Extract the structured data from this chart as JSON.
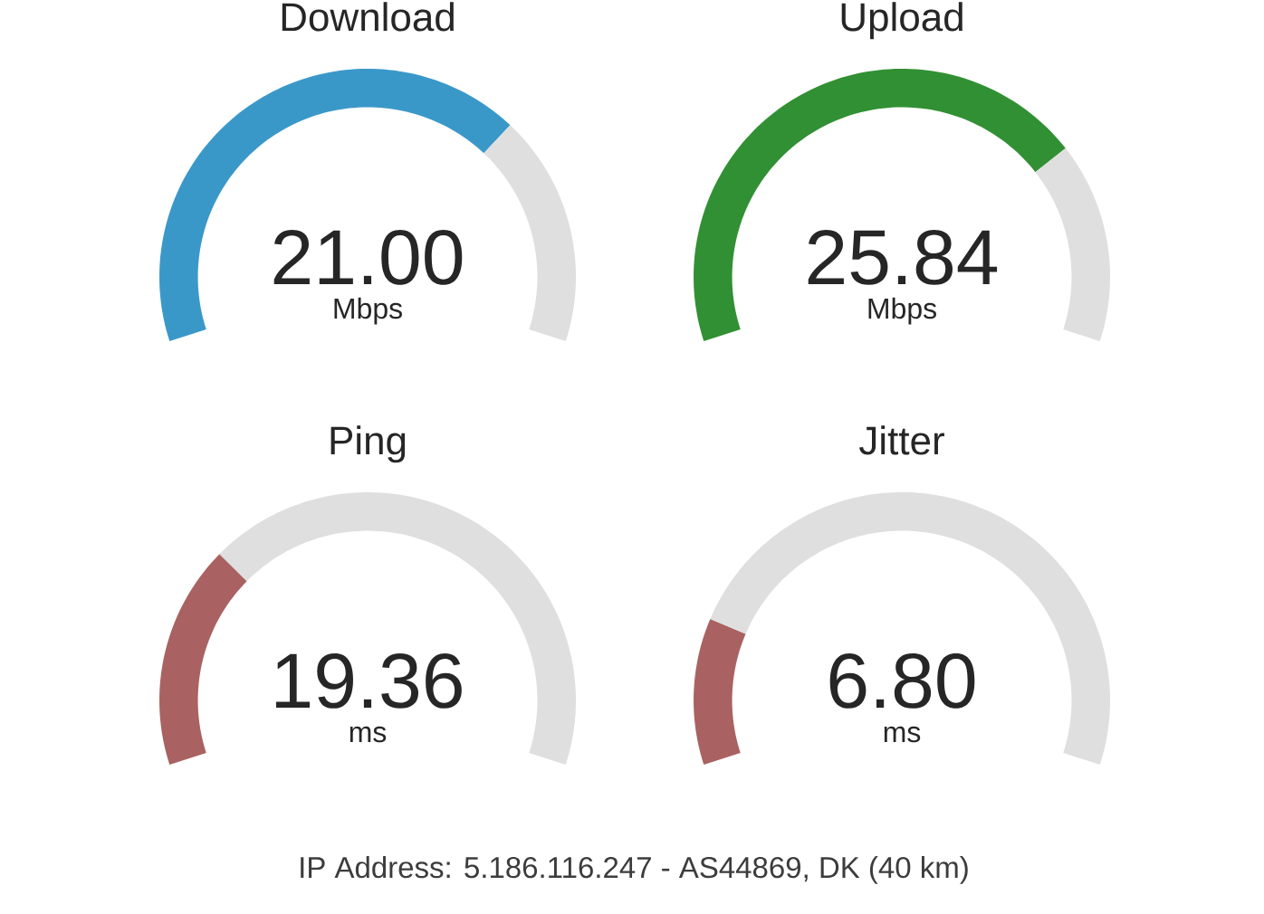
{
  "chart_data": [
    {
      "type": "donut",
      "title": "Download",
      "categories": [
        null,
        null
      ],
      "values": [
        70,
        30
      ],
      "colors": [
        "#3a98c9",
        "#dfdfdf"
      ],
      "annotations": [
        "21.00",
        "Mbps"
      ]
    },
    {
      "type": "donut",
      "title": "Upload",
      "categories": [
        null,
        null
      ],
      "values": [
        74,
        26
      ],
      "colors": [
        "#319033",
        "#dfdfdf"
      ],
      "annotations": [
        "25.84",
        "Mbps"
      ]
    },
    {
      "type": "donut",
      "title": "Ping",
      "categories": [
        null,
        null
      ],
      "values": [
        29,
        71
      ],
      "colors": [
        "#a96261",
        "#dfdfdf"
      ],
      "annotations": [
        "19.36",
        "ms"
      ]
    },
    {
      "type": "donut",
      "title": "Jitter",
      "categories": [
        null,
        null
      ],
      "values": [
        19,
        81
      ],
      "colors": [
        "#a96261",
        "#dfdfdf"
      ],
      "annotations": [
        "6.80",
        "ms"
      ]
    },
    {
      "type": "other",
      "annotations": [
        "IP Address: 5.186.116.247 - AS44869, DK (40 km)"
      ]
    }
  ]
}
